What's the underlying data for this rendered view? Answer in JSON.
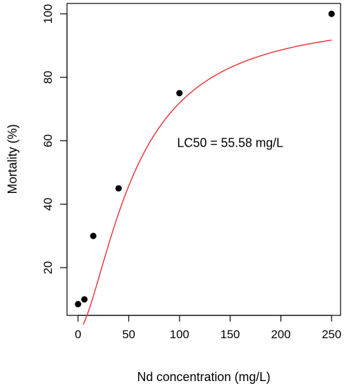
{
  "chart_data": {
    "type": "scatter",
    "title": "",
    "xlabel": "Nd concentration (mg/L)",
    "ylabel": "Mortality (%)",
    "xlim": [
      0,
      250
    ],
    "ylim": [
      5,
      100
    ],
    "xticks": [
      0,
      50,
      100,
      150,
      200,
      250
    ],
    "yticks": [
      20,
      40,
      60,
      80,
      100
    ],
    "grid": false,
    "legend": "none",
    "series": [
      {
        "kind": "points",
        "color": "#000000",
        "x": [
          0,
          6.25,
          15,
          40,
          100,
          250
        ],
        "y": [
          8.5,
          10,
          30,
          45,
          75,
          100
        ]
      },
      {
        "kind": "fitted-curve",
        "color": "#e8383d",
        "model": "log-logistic",
        "ec50": 55.58,
        "slope": 1.6,
        "x_start": 5,
        "x_end": 250
      }
    ],
    "annotations": [
      {
        "text": "LC50 = 55.58 mg/L",
        "x": 150,
        "y": 58
      }
    ]
  }
}
